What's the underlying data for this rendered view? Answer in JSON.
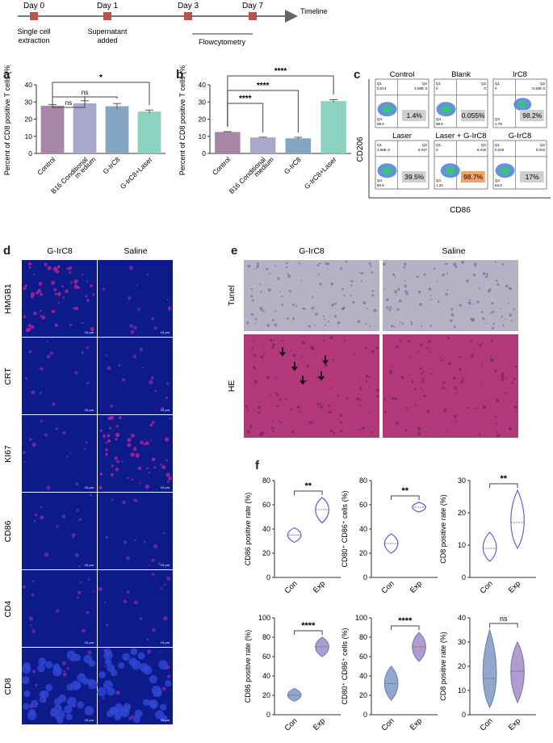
{
  "timeline": {
    "label": "Timeline",
    "events": [
      {
        "day": "Day 0",
        "desc1": "Single cell",
        "desc2": "extraction"
      },
      {
        "day": "Day 1",
        "desc1": "Supernatant",
        "desc2": "added"
      },
      {
        "day": "Day 3",
        "desc1": "",
        "desc2": ""
      },
      {
        "day": "Day 7",
        "desc1": "",
        "desc2": ""
      }
    ],
    "bracket_label": "Flowcytometry",
    "marker_color": "#c0504d"
  },
  "panel_a": {
    "letter": "a",
    "chart_data": {
      "type": "bar",
      "categories": [
        "Control",
        "B16 Conditional m edium",
        "G-IrC8",
        "G-IrC8+Laser"
      ],
      "values": [
        27.8,
        29.2,
        27.5,
        24.4
      ],
      "errors": [
        0.7,
        1.5,
        1.6,
        0.9
      ],
      "colors": [
        "#a886a8",
        "#a7a8cc",
        "#83a7c2",
        "#8bd2c0"
      ],
      "ylabel": "Percent of CD8 positive T cells (%)",
      "ylim": [
        0,
        40
      ],
      "yticks": [
        "0",
        "10",
        "20",
        "30",
        "40"
      ],
      "significance": [
        {
          "from": 0,
          "to": 1,
          "label": "ns"
        },
        {
          "from": 0,
          "to": 2,
          "label": "ns"
        },
        {
          "from": 0,
          "to": 3,
          "label": "*"
        }
      ]
    }
  },
  "panel_b": {
    "letter": "b",
    "chart_data": {
      "type": "bar",
      "categories": [
        "Control",
        "B16 Conditional medium",
        "G-IrC8",
        "G-IrC8+Laser"
      ],
      "values": [
        12.5,
        9.3,
        8.8,
        30.5
      ],
      "errors": [
        0.2,
        0.2,
        0.6,
        0.8
      ],
      "colors": [
        "#a886a8",
        "#a7a8cc",
        "#83a7c2",
        "#8bd2c0"
      ],
      "ylabel": "Percent of CD8 positive T cells (%)",
      "ylim": [
        0,
        40
      ],
      "yticks": [
        "0",
        "10",
        "20",
        "30",
        "40"
      ],
      "significance": [
        {
          "from": 0,
          "to": 1,
          "label": "****"
        },
        {
          "from": 0,
          "to": 2,
          "label": "****"
        },
        {
          "from": 0,
          "to": 3,
          "label": "****"
        }
      ]
    }
  },
  "panel_c": {
    "letter": "c",
    "xlabel": "CD86",
    "ylabel": "CD206",
    "plots": [
      {
        "title": "Control",
        "q1": "0.014",
        "q2": "4.58E-3",
        "q4": "98.6",
        "pct": "1.4%",
        "highlight": "#cfcfcf"
      },
      {
        "title": "Blank",
        "q1": "0",
        "q2": "0",
        "q4": "99.9",
        "pct": "0.055%",
        "highlight": "#cfcfcf"
      },
      {
        "title": "IrC8",
        "q1": "0",
        "q2": "9.16E-3",
        "q4": "1.78",
        "pct": "98.2%",
        "highlight": "#cfcfcf"
      },
      {
        "title": "Laser",
        "q1": "4.55E-3",
        "q2": "0.027",
        "q4": "60.5",
        "pct": "39.5%",
        "highlight": "#cfcfcf"
      },
      {
        "title": "Laser + G-IrC8",
        "q1": "0",
        "q2": "0.018",
        "q4": "1.24",
        "pct": "98.7%",
        "highlight": "#f4a26a"
      },
      {
        "title": "G-IrC8",
        "q1": "0.015",
        "q2": "0.015",
        "q4": "83.0",
        "pct": "17%",
        "highlight": "#cfcfcf"
      }
    ]
  },
  "panel_d": {
    "letter": "d",
    "columns": [
      "G-IrC8",
      "Saline"
    ],
    "rows": [
      "HMGB1",
      "CRT",
      "KI67",
      "CD86",
      "CD4",
      "CD8"
    ],
    "scale_label": "10 μm"
  },
  "panel_e": {
    "letter": "e",
    "columns": [
      "G-IrC8",
      "Saline"
    ],
    "rows": [
      "Tunel",
      "HE"
    ]
  },
  "panel_f": {
    "letter": "f",
    "chart_data": [
      {
        "type": "violin",
        "categories": [
          "Con",
          "Exp"
        ],
        "ylabel": "CD86 positive rate (%)",
        "ylim": [
          0,
          80
        ],
        "yticks": [
          "0",
          "20",
          "40",
          "60",
          "80"
        ],
        "series": [
          {
            "median": 35,
            "min": 29,
            "max": 41
          },
          {
            "median": 56,
            "min": 45,
            "max": 66
          }
        ],
        "significance": "**",
        "color": "#6a5acd"
      },
      {
        "type": "violin",
        "categories": [
          "Con",
          "Exp"
        ],
        "ylabel": "CD80⁺ CD86⁺ cells (%)",
        "ylim": [
          0,
          80
        ],
        "yticks": [
          "0",
          "20",
          "40",
          "60",
          "80"
        ],
        "series": [
          {
            "median": 28,
            "min": 20,
            "max": 36
          },
          {
            "median": 58,
            "min": 54,
            "max": 62
          }
        ],
        "significance": "**",
        "color": "#6a5acd"
      },
      {
        "type": "violin",
        "categories": [
          "Con",
          "Exp"
        ],
        "ylabel": "CD8 positive rate (%)",
        "ylim": [
          0,
          30
        ],
        "yticks": [
          "0",
          "10",
          "20",
          "30"
        ],
        "series": [
          {
            "median": 9,
            "min": 5,
            "max": 14
          },
          {
            "median": 17,
            "min": 9,
            "max": 27
          }
        ],
        "significance": "**",
        "color": "#7a5ac8"
      },
      {
        "type": "violin",
        "categories": [
          "Con",
          "Exp"
        ],
        "ylabel": "CD86 positive rate (%)",
        "ylim": [
          0,
          100
        ],
        "yticks": [
          "0",
          "20",
          "40",
          "60",
          "80",
          "100"
        ],
        "series": [
          {
            "median": 20,
            "min": 14,
            "max": 27
          },
          {
            "median": 70,
            "min": 60,
            "max": 80
          }
        ],
        "significance": "****",
        "color": "#5b6fb0",
        "fill": true
      },
      {
        "type": "violin",
        "categories": [
          "Con",
          "Exp"
        ],
        "ylabel": "CD80⁺ CD86⁺ cells (%)",
        "ylim": [
          0,
          100
        ],
        "yticks": [
          "0",
          "20",
          "40",
          "60",
          "80",
          "100"
        ],
        "series": [
          {
            "median": 32,
            "min": 15,
            "max": 50
          },
          {
            "median": 70,
            "min": 55,
            "max": 85
          }
        ],
        "significance": "****",
        "color": "#5b6fb0",
        "fill": true
      },
      {
        "type": "violin",
        "categories": [
          "Con",
          "Exp"
        ],
        "ylabel": "CD8 positive rate (%)",
        "ylim": [
          0,
          40
        ],
        "yticks": [
          "0",
          "10",
          "20",
          "30",
          "40"
        ],
        "series": [
          {
            "median": 15,
            "min": 3,
            "max": 35
          },
          {
            "median": 18,
            "min": 5,
            "max": 30
          }
        ],
        "significance": "ns",
        "color": "#5b6fb0",
        "fill": true
      }
    ]
  }
}
